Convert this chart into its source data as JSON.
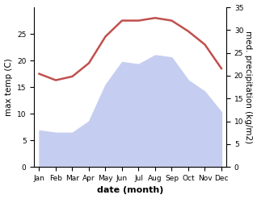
{
  "months": [
    "Jan",
    "Feb",
    "Mar",
    "Apr",
    "May",
    "Jun",
    "Jul",
    "Aug",
    "Sep",
    "Oct",
    "Nov",
    "Dec"
  ],
  "temperature": [
    17.5,
    16.3,
    17.0,
    19.5,
    24.5,
    27.5,
    27.5,
    28.0,
    27.5,
    25.5,
    23.0,
    18.5
  ],
  "precipitation": [
    8.0,
    7.5,
    7.5,
    10.0,
    18.0,
    23.0,
    22.5,
    24.5,
    24.0,
    19.0,
    16.5,
    12.0
  ],
  "temp_color": "#c0504d",
  "precip_fill_color": "#c5cef0",
  "xlabel": "date (month)",
  "ylabel_left": "max temp (C)",
  "ylabel_right": "med. precipitation (kg/m2)",
  "ylim_left": [
    0,
    30
  ],
  "ylim_right": [
    0,
    35
  ],
  "yticks_left": [
    0,
    5,
    10,
    15,
    20,
    25
  ],
  "yticks_right": [
    0,
    5,
    10,
    15,
    20,
    25,
    30,
    35
  ],
  "background_color": "#ffffff",
  "temp_linewidth": 1.8,
  "xlabel_fontsize": 8,
  "ylabel_fontsize": 7.5
}
